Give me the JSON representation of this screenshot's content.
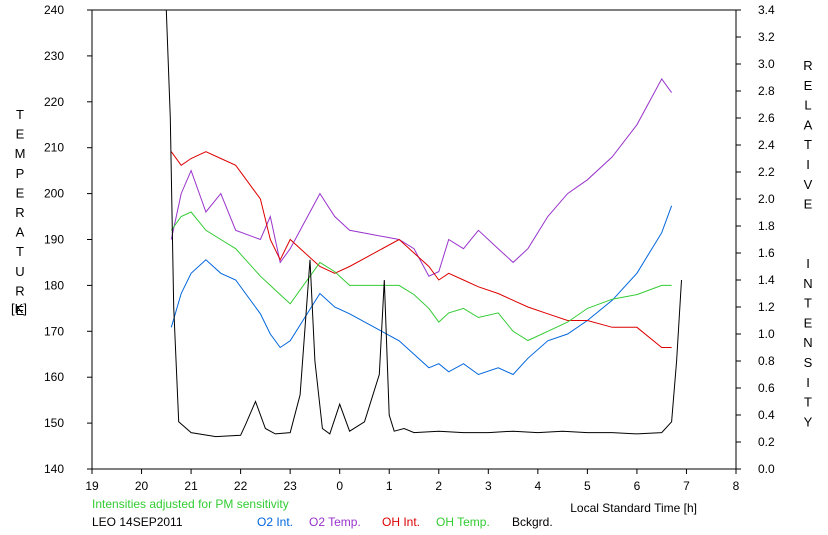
{
  "chart_data": {
    "type": "line",
    "left_axis_label": "TEMPERATURE",
    "left_axis_unit": "[K]",
    "right_axis_label": "RELATIVE  INTENSITY",
    "xlabel": "Local Standard Time [h]",
    "note": "Intensities adjusted for PM sensitivity",
    "station_date": "LEO 14SEP2011",
    "xlim": [
      19,
      32
    ],
    "ylim_left": [
      140,
      240
    ],
    "ylim_right": [
      0.0,
      3.4
    ],
    "x_ticks": [
      19,
      20,
      21,
      22,
      23,
      24,
      25,
      26,
      27,
      28,
      29,
      30,
      31,
      32
    ],
    "x_tick_labels": [
      "19",
      "20",
      "21",
      "22",
      "23",
      "0",
      "1",
      "2",
      "3",
      "4",
      "5",
      "6",
      "7",
      "8"
    ],
    "y_left_ticks": [
      140,
      150,
      160,
      170,
      180,
      190,
      200,
      210,
      220,
      230,
      240
    ],
    "y_right_ticks": [
      "0.0",
      "0.2",
      "0.4",
      "0.6",
      "0.8",
      "1.0",
      "1.2",
      "1.4",
      "1.6",
      "1.8",
      "2.0",
      "2.2",
      "2.4",
      "2.6",
      "2.8",
      "3.0",
      "3.2",
      "3.4"
    ],
    "grid": false,
    "legend_position": "bottom",
    "series": [
      {
        "name": "O2 Int.",
        "axis": "right",
        "color": "#0066dd",
        "x": [
          20.6,
          20.8,
          21.0,
          21.3,
          21.6,
          21.9,
          22.4,
          22.6,
          22.8,
          23.0,
          23.6,
          23.9,
          24.2,
          25.2,
          25.5,
          25.8,
          26.0,
          26.2,
          26.5,
          26.8,
          27.2,
          27.5,
          27.8,
          28.2,
          28.6,
          29.0,
          29.5,
          30.0,
          30.5,
          30.7
        ],
        "values": [
          1.05,
          1.3,
          1.45,
          1.55,
          1.45,
          1.4,
          1.15,
          1.0,
          0.9,
          0.95,
          1.3,
          1.2,
          1.15,
          0.95,
          0.85,
          0.75,
          0.78,
          0.72,
          0.78,
          0.7,
          0.75,
          0.7,
          0.82,
          0.95,
          1.0,
          1.1,
          1.25,
          1.45,
          1.75,
          1.95
        ]
      },
      {
        "name": "O2 Temp.",
        "axis": "left",
        "color": "#9933cc",
        "x": [
          20.6,
          20.8,
          21.0,
          21.3,
          21.6,
          21.9,
          22.4,
          22.6,
          22.8,
          23.0,
          23.6,
          23.9,
          24.2,
          25.2,
          25.5,
          25.8,
          26.0,
          26.2,
          26.5,
          26.8,
          27.2,
          27.5,
          27.8,
          28.2,
          28.6,
          29.0,
          29.5,
          30.0,
          30.5,
          30.7
        ],
        "values": [
          190,
          200,
          205,
          196,
          200,
          192,
          190,
          195,
          185,
          188,
          200,
          195,
          192,
          190,
          188,
          182,
          183,
          190,
          188,
          192,
          188,
          185,
          188,
          195,
          200,
          203,
          208,
          215,
          225,
          222
        ]
      },
      {
        "name": "OH Int.",
        "axis": "right",
        "color": "#dd0000",
        "x": [
          20.6,
          20.8,
          21.0,
          21.3,
          21.6,
          21.9,
          22.4,
          22.6,
          22.8,
          23.0,
          23.6,
          23.9,
          24.2,
          25.2,
          25.5,
          25.8,
          26.0,
          26.2,
          26.5,
          26.8,
          27.2,
          27.5,
          27.8,
          28.2,
          28.6,
          29.0,
          29.5,
          30.0,
          30.5,
          30.7
        ],
        "values": [
          2.35,
          2.25,
          2.3,
          2.35,
          2.3,
          2.25,
          2.0,
          1.7,
          1.55,
          1.7,
          1.5,
          1.45,
          1.5,
          1.7,
          1.6,
          1.5,
          1.4,
          1.45,
          1.4,
          1.35,
          1.3,
          1.25,
          1.2,
          1.15,
          1.1,
          1.1,
          1.05,
          1.05,
          0.9,
          0.9
        ]
      },
      {
        "name": "OH Temp.",
        "axis": "left",
        "color": "#33cc33",
        "x": [
          20.6,
          20.8,
          21.0,
          21.3,
          21.6,
          21.9,
          22.4,
          22.6,
          22.8,
          23.0,
          23.6,
          23.9,
          24.2,
          25.2,
          25.5,
          25.8,
          26.0,
          26.2,
          26.5,
          26.8,
          27.2,
          27.5,
          27.8,
          28.2,
          28.6,
          29.0,
          29.5,
          30.0,
          30.5,
          30.7
        ],
        "values": [
          192,
          195,
          196,
          192,
          190,
          188,
          182,
          180,
          178,
          176,
          185,
          183,
          180,
          180,
          178,
          175,
          172,
          174,
          175,
          173,
          174,
          170,
          168,
          170,
          172,
          175,
          177,
          178,
          180,
          180
        ]
      },
      {
        "name": "Bckgrd.",
        "axis": "right",
        "color": "#000000",
        "x": [
          20.5,
          20.58,
          20.65,
          20.75,
          21.0,
          21.5,
          22.0,
          22.1,
          22.3,
          22.5,
          22.7,
          23.0,
          23.2,
          23.4,
          23.5,
          23.65,
          23.8,
          24.0,
          24.2,
          24.5,
          24.8,
          24.9,
          25.0,
          25.1,
          25.3,
          25.5,
          26.0,
          26.5,
          27.0,
          27.5,
          28.0,
          28.5,
          29.0,
          29.5,
          30.0,
          30.5,
          30.7,
          30.8,
          30.9
        ],
        "values": [
          3.4,
          2.6,
          1.2,
          0.35,
          0.27,
          0.24,
          0.25,
          0.33,
          0.5,
          0.3,
          0.26,
          0.27,
          0.55,
          1.55,
          0.8,
          0.3,
          0.26,
          0.48,
          0.28,
          0.35,
          0.7,
          1.4,
          0.4,
          0.28,
          0.3,
          0.27,
          0.28,
          0.27,
          0.27,
          0.28,
          0.27,
          0.28,
          0.27,
          0.27,
          0.26,
          0.27,
          0.35,
          0.8,
          1.4
        ]
      }
    ]
  }
}
